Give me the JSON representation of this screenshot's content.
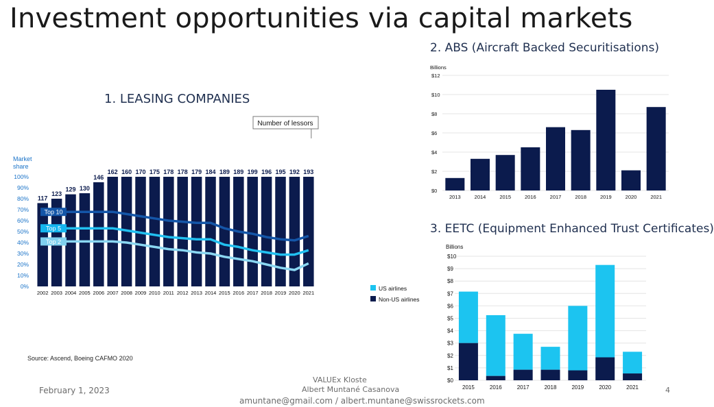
{
  "slide": {
    "title": "Investment opportunities via capital markets",
    "page_number": "4"
  },
  "footer": {
    "date": "February 1, 2023",
    "org": "VALUEx Kloste",
    "author": "Albert Muntané Casanova",
    "emails": "amuntane@gmail.com / albert.muntane@swissrockets.com"
  },
  "source": "Source: Ascend, Boeing CAFMO 2020",
  "colors": {
    "navy": "#0b1b4d",
    "cyan": "#1cc4f0",
    "dark_blue": "#1456a8",
    "mid_cyan": "#21c0f0",
    "light_cyan": "#8ad7f2"
  },
  "chart_data": [
    {
      "id": "leasing",
      "type": "bar",
      "title": "1. LEASING COMPANIES",
      "ylabel": "Market share",
      "ylim": [
        0,
        100
      ],
      "yticks": [
        "0%",
        "10%",
        "20%",
        "30%",
        "40%",
        "50%",
        "60%",
        "70%",
        "80%",
        "90%",
        "100%"
      ],
      "callout": "Number of lessors",
      "categories": [
        "2002",
        "2003",
        "2004",
        "2005",
        "2006",
        "2007",
        "2008",
        "2009",
        "2010",
        "2011",
        "2012",
        "2013",
        "2014",
        "2015",
        "2016",
        "2017",
        "2018",
        "2019",
        "2020",
        "2021"
      ],
      "bar_values": [
        117,
        123,
        129,
        130,
        146,
        162,
        160,
        170,
        175,
        178,
        178,
        179,
        184,
        189,
        189,
        199,
        196,
        195,
        192,
        193
      ],
      "bar_share": [
        76,
        80,
        84,
        85,
        95,
        100,
        100,
        100,
        100,
        100,
        100,
        100,
        100,
        100,
        100,
        100,
        100,
        100,
        100,
        100
      ],
      "series": [
        {
          "name": "Top 10",
          "values": [
            68,
            68,
            68,
            68,
            68,
            68,
            66,
            64,
            62,
            60,
            59,
            58,
            58,
            53,
            50,
            48,
            45,
            43,
            42,
            46
          ]
        },
        {
          "name": "Top 5",
          "values": [
            53,
            53,
            53,
            53,
            53,
            53,
            51,
            49,
            47,
            45,
            44,
            43,
            43,
            38,
            36,
            33,
            31,
            29,
            29,
            33
          ]
        },
        {
          "name": "Top 2",
          "values": [
            41,
            41,
            41,
            41,
            41,
            41,
            40,
            38,
            36,
            34,
            33,
            31,
            30,
            27,
            25,
            23,
            20,
            17,
            15,
            21
          ]
        }
      ]
    },
    {
      "id": "abs",
      "type": "bar",
      "title": "2. ABS (Aircraft Backed Securitisations)",
      "ylabel": "Billions",
      "ylim": [
        0,
        12
      ],
      "yticks": [
        "$0",
        "$2",
        "$4",
        "$6",
        "$8",
        "$10",
        "$12"
      ],
      "categories": [
        "2013",
        "2014",
        "2015",
        "2016",
        "2017",
        "2018",
        "2019",
        "2020",
        "2021"
      ],
      "values": [
        1.3,
        3.3,
        3.7,
        4.5,
        6.6,
        6.3,
        10.5,
        2.1,
        8.7
      ]
    },
    {
      "id": "eetc",
      "type": "bar",
      "stacked": true,
      "title": "3. EETC (Equipment Enhanced Trust Certificates)",
      "ylabel": "Billions",
      "ylim": [
        0,
        10
      ],
      "yticks": [
        "$0",
        "$1",
        "$2",
        "$3",
        "$4",
        "$5",
        "$6",
        "$7",
        "$8",
        "$9",
        "$10"
      ],
      "categories": [
        "2015",
        "2016",
        "2017",
        "2018",
        "2019",
        "2020",
        "2021"
      ],
      "series": [
        {
          "name": "Non-US airlines",
          "values": [
            3.0,
            0.35,
            0.85,
            0.85,
            0.8,
            1.85,
            0.55
          ]
        },
        {
          "name": "US airlines",
          "values": [
            4.15,
            4.9,
            2.9,
            1.85,
            5.2,
            7.45,
            1.75
          ]
        }
      ]
    }
  ]
}
